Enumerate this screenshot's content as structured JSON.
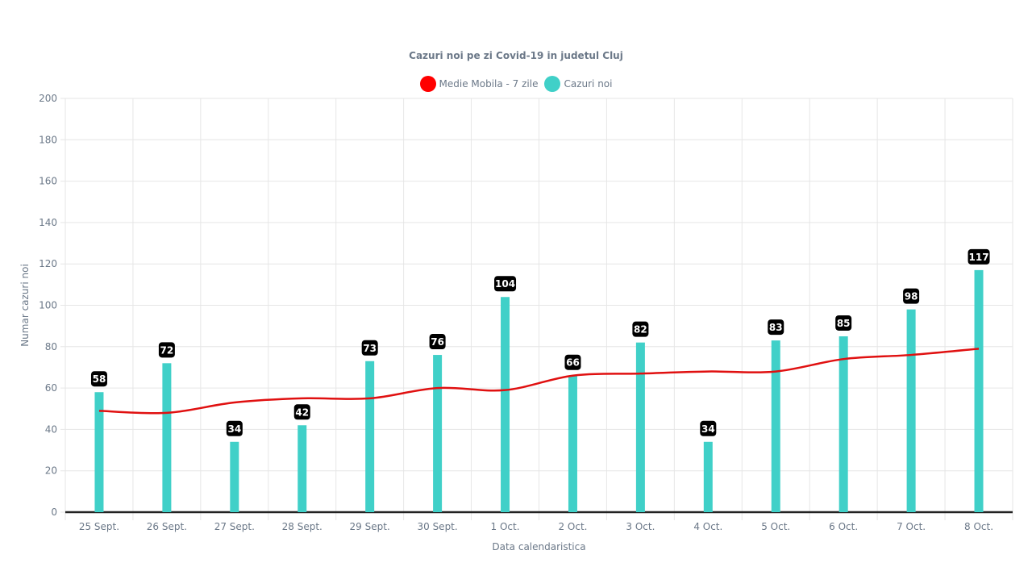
{
  "chart_data": {
    "type": "bar",
    "title": "Cazuri noi pe zi Covid-19 in judetul Cluj",
    "xlabel": "Data calendaristica",
    "ylabel": "Numar cazuri noi",
    "ylim": [
      0,
      200
    ],
    "yticks": [
      0,
      20,
      40,
      60,
      80,
      100,
      120,
      140,
      160,
      180,
      200
    ],
    "grid": true,
    "legend_position": "top",
    "categories": [
      "25 Sept.",
      "26 Sept.",
      "27 Sept.",
      "28 Sept.",
      "29 Sept.",
      "30 Sept.",
      "1 Oct.",
      "2 Oct.",
      "3 Oct.",
      "4 Oct.",
      "5 Oct.",
      "6 Oct.",
      "7 Oct.",
      "8 Oct."
    ],
    "series": [
      {
        "name": "Medie Mobila - 7 zile",
        "type": "line",
        "color": "#e01010",
        "values": [
          49,
          48,
          53,
          55,
          55,
          60,
          59,
          66,
          67,
          68,
          68,
          74,
          76,
          79
        ]
      },
      {
        "name": "Cazuri noi",
        "type": "bar",
        "color": "#40d0c8",
        "values": [
          58,
          72,
          34,
          42,
          73,
          76,
          104,
          66,
          82,
          34,
          83,
          85,
          98,
          117
        ]
      }
    ]
  }
}
